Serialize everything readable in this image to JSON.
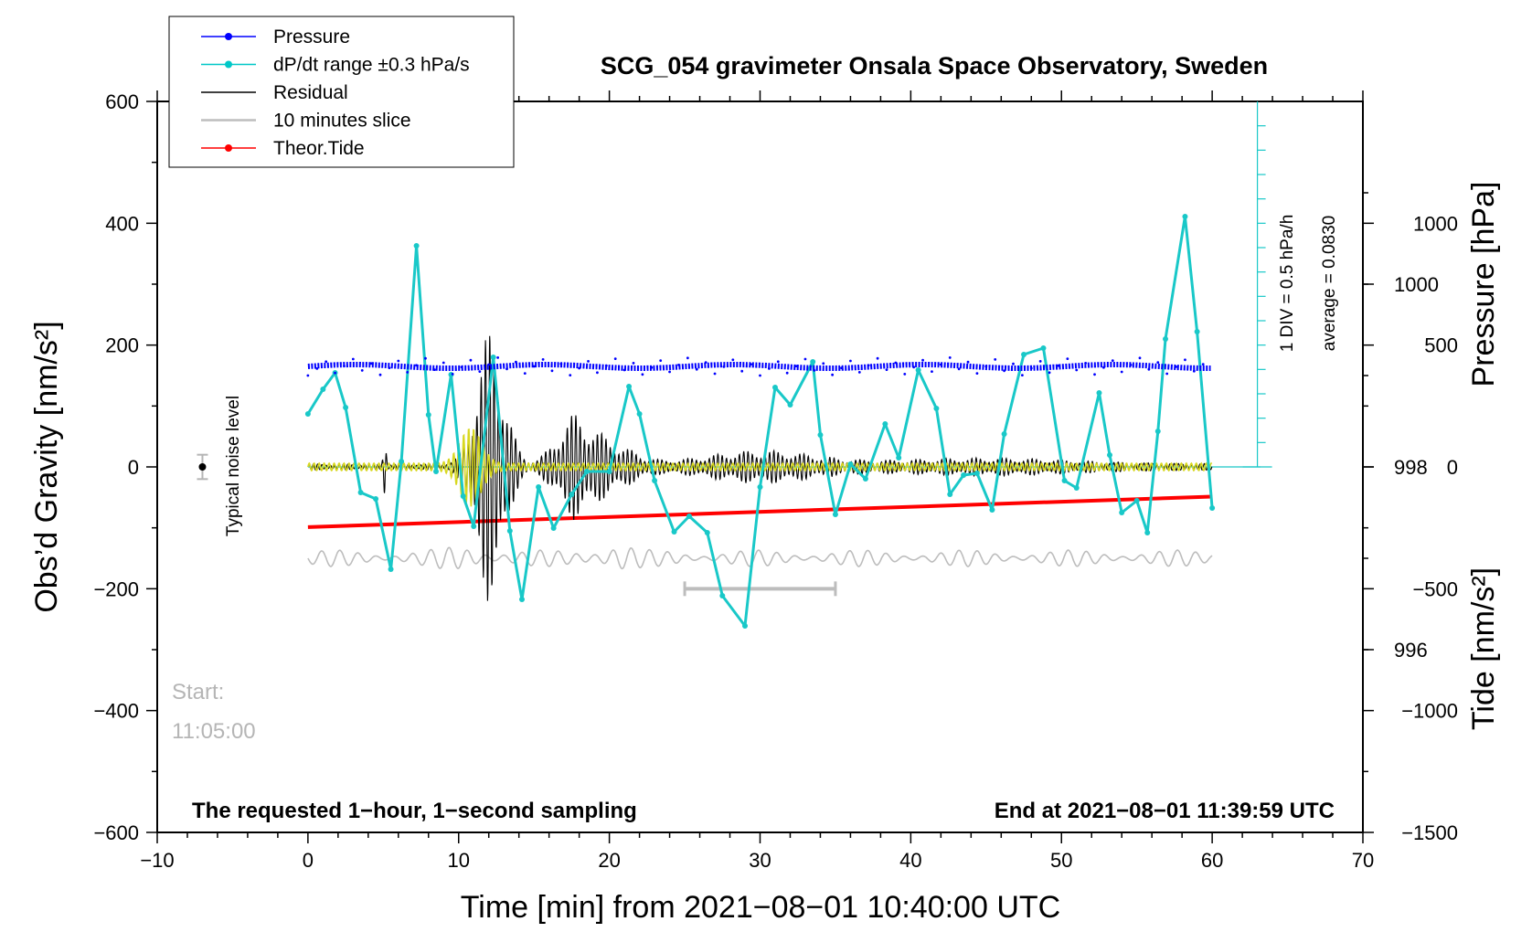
{
  "chart_data": {
    "type": "line",
    "title": "SCG_054 gravimeter Onsala Space Observatory, Sweden",
    "xlabel": "Time [min] from 2021−08−01 10:40:00 UTC",
    "ylabel_left": "Obs’d Gravity [nm/s²]",
    "ylabel_pressure": "Pressure [hPa]",
    "ylabel_tide": "Tide [nm/s²]",
    "xlim": [
      -10,
      70
    ],
    "ylim": [
      -600,
      600
    ],
    "pressure_range": [
      994,
      1002
    ],
    "tide_range": [
      -1500,
      1500
    ],
    "xticks": [
      "−10",
      "0",
      "10",
      "20",
      "30",
      "40",
      "50",
      "60",
      "70"
    ],
    "yticks_left": [
      "600",
      "400",
      "200",
      "0",
      "−200",
      "−400",
      "−600"
    ],
    "yticks_pressure": [
      "1000",
      "998",
      "996"
    ],
    "yticks_tide": [
      "1000",
      "500",
      "0",
      "−500",
      "−1000",
      "−1500"
    ],
    "legend": [
      {
        "name": "Pressure",
        "color": "#0000ff",
        "marker": true
      },
      {
        "name": "dP/dt range ±0.3 hPa/s",
        "color": "#00c8c8",
        "marker": true
      },
      {
        "name": "Residual",
        "color": "#000000",
        "marker": false
      },
      {
        "name": "10 minutes slice",
        "color": "#bdbdbd",
        "marker": false
      },
      {
        "name": "Theor.Tide",
        "color": "#ff0000",
        "marker": true
      }
    ],
    "series": [
      {
        "name": "Pressure",
        "color": "#0000ff",
        "x_range": [
          0,
          60
        ],
        "mean_hpa": 999.1,
        "spread_hpa": 0.1
      },
      {
        "name": "dP/dt range ±0.3 hPa/s",
        "color": "#19c8c8",
        "x": [
          0,
          1,
          1.8,
          2.5,
          3.5,
          4.5,
          5.5,
          6.2,
          7.2,
          8.0,
          8.5,
          9.5,
          10.3,
          11.0,
          12.3,
          13.4,
          14.2,
          15.3,
          16.3,
          17.5,
          18.5,
          20,
          21.3,
          22,
          23,
          24.3,
          25.3,
          26.5,
          27.5,
          29,
          30,
          31,
          32,
          33.5,
          34,
          35,
          36,
          37,
          38.3,
          39.2,
          40.5,
          41.7,
          42.6,
          43.5,
          44.4,
          45.4,
          46.2,
          47.5,
          48.8,
          50.2,
          51,
          52.5,
          53.2,
          54,
          55,
          55.7,
          56.4,
          56.9,
          58.2,
          59,
          60
        ],
        "y_pressure": [
          998.58,
          998.85,
          999.03,
          998.65,
          997.72,
          997.65,
          996.88,
          998.06,
          1000.42,
          998.57,
          997.95,
          999.01,
          997.68,
          997.35,
          999.2,
          997.3,
          996.55,
          997.78,
          997.33,
          997.7,
          997.95,
          997.95,
          998.88,
          998.58,
          997.85,
          997.29,
          997.46,
          997.28,
          996.59,
          996.26,
          997.78,
          998.87,
          998.68,
          999.15,
          998.35,
          997.48,
          998.03,
          997.87,
          998.47,
          998.1,
          999.06,
          998.64,
          997.7,
          997.91,
          997.93,
          997.53,
          998.36,
          999.23,
          999.3,
          997.85,
          997.77,
          998.81,
          998.13,
          997.5,
          997.63,
          997.28,
          998.39,
          999.4,
          1000.74,
          999.48,
          997.55
        ]
      },
      {
        "name": "Residual",
        "color": "#000000",
        "x_range": [
          0,
          60
        ],
        "peak_positive": 225,
        "peak_negative": -235,
        "peak_time_min": 12.2
      },
      {
        "name": "Residual (yellow overlay)",
        "color": "#d8d820",
        "x_range": [
          0,
          60
        ],
        "peak_amplitude": 65
      },
      {
        "name": "Theor.Tide",
        "color": "#ff0000",
        "x": [
          0,
          60
        ],
        "y_tide": [
          -247,
          -122
        ]
      },
      {
        "name": "10 minutes slice",
        "color": "#bdbdbd",
        "x_range": [
          0,
          60
        ],
        "y_mid": -375
      }
    ],
    "reference_line_pressure": 998,
    "dpdt_scale_label": "1 DIV = 0.5 hPa/h",
    "average_label": "average = 0.0830",
    "noise": {
      "label": "Typical noise level",
      "x": -7,
      "y": 0,
      "err": 20
    },
    "slice_bar": {
      "x": [
        25,
        35
      ],
      "y": -200
    },
    "start_label": "Start:",
    "start_time": "11:05:00",
    "footer_left": "The requested 1−hour, 1−second sampling",
    "footer_right": "End at 2021−08−01 11:39:59 UTC"
  }
}
